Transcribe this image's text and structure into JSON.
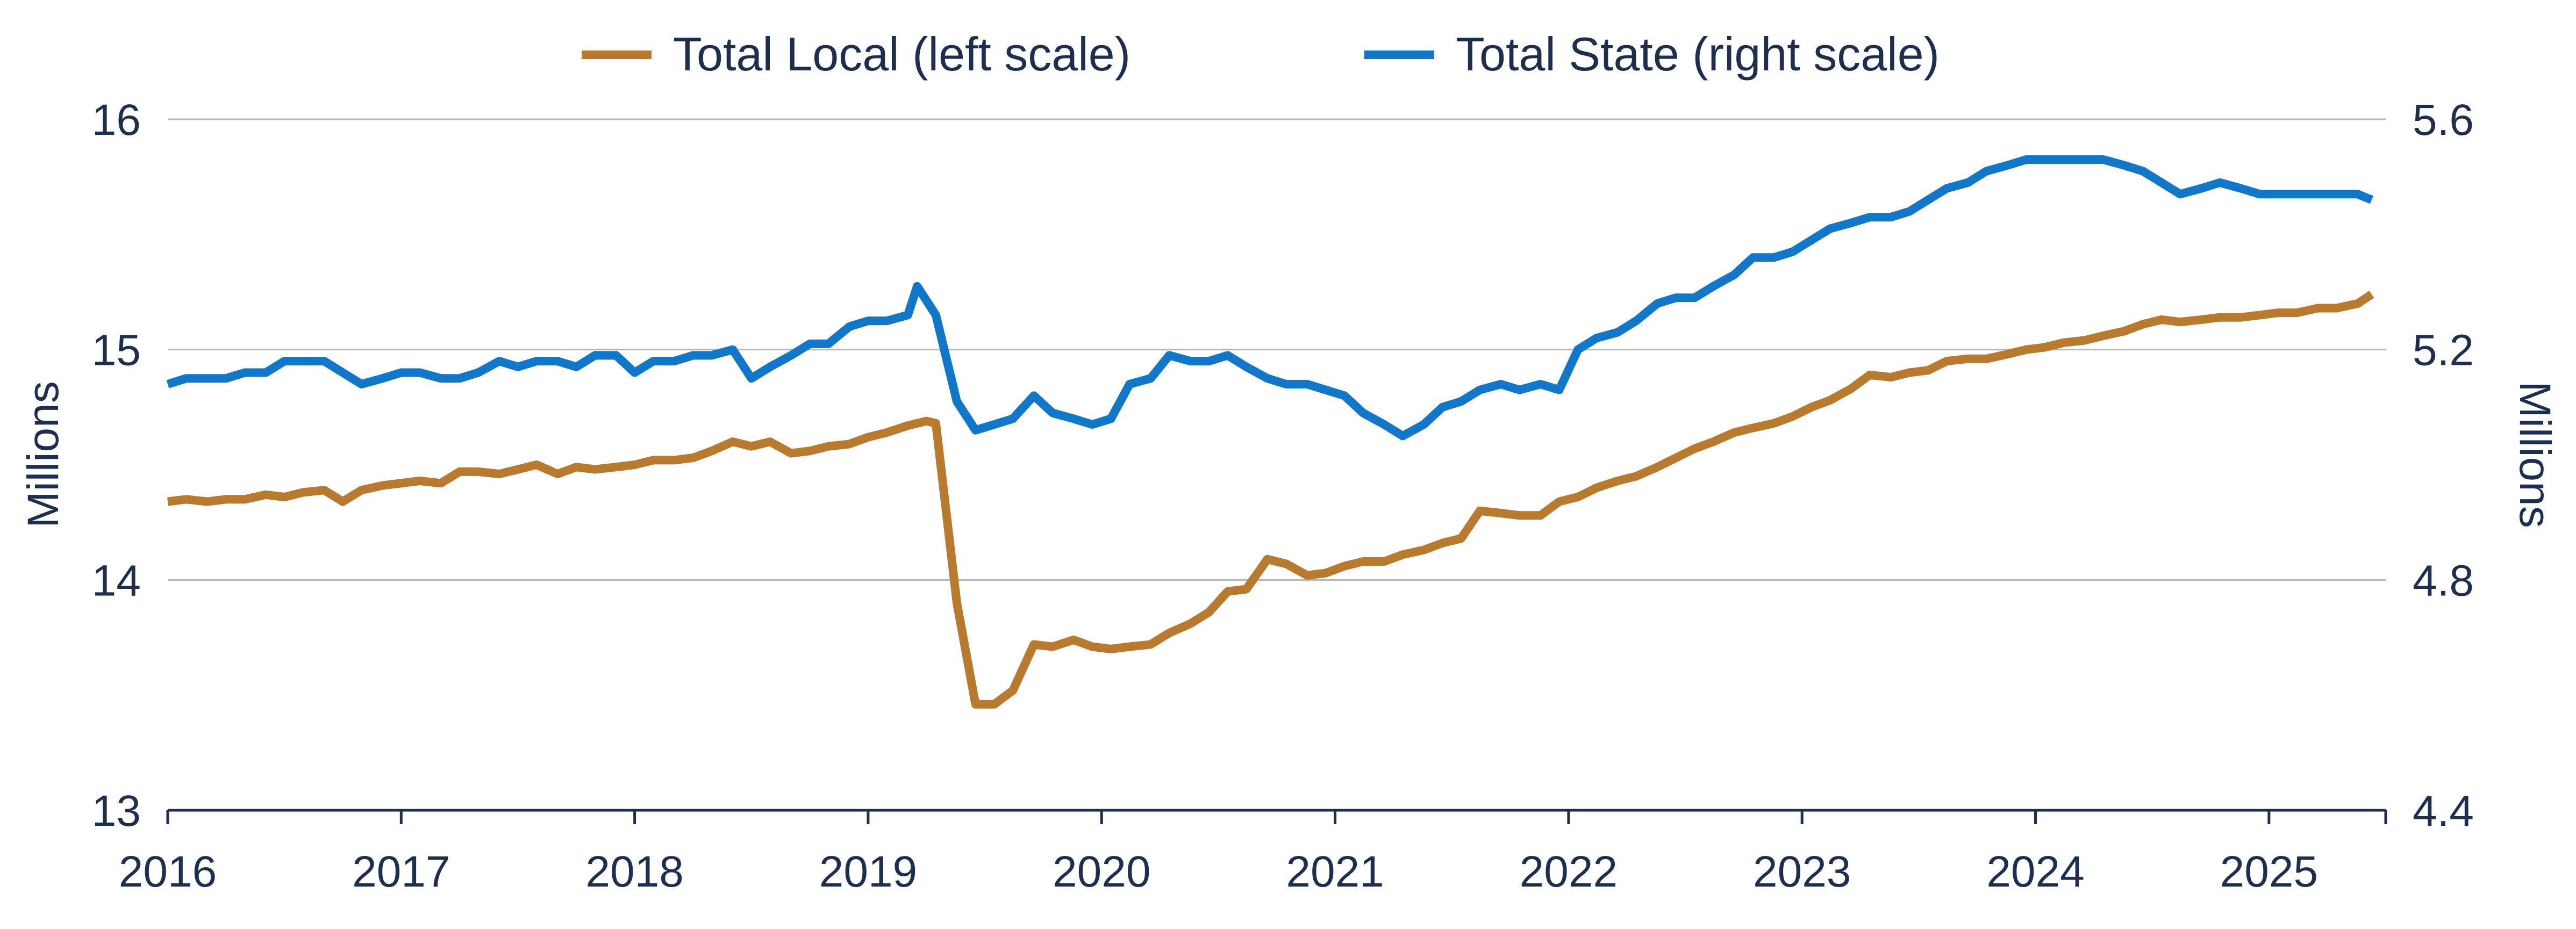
{
  "chart_data": {
    "type": "line",
    "title": "",
    "xlabel": "",
    "x_ticks": [
      "2016",
      "2017",
      "2018",
      "2019",
      "2020",
      "2021",
      "2022",
      "2023",
      "2024",
      "2025"
    ],
    "xlim": [
      2016,
      2025.5
    ],
    "y_left": {
      "label": "Millions",
      "lim": [
        13,
        16
      ],
      "ticks": [
        "13",
        "14",
        "15",
        "16"
      ]
    },
    "y_right": {
      "label": "Millions",
      "lim": [
        4.4,
        5.6
      ],
      "ticks": [
        "4.4",
        "4.8",
        "5.2",
        "5.6"
      ]
    },
    "grid": "horizontal",
    "legend_position": "top-center",
    "series": [
      {
        "name": "Total Local (left scale)",
        "axis": "left",
        "color": "#b87a2e",
        "points": [
          [
            2016.0,
            14.34
          ],
          [
            2016.08,
            14.35
          ],
          [
            2016.17,
            14.34
          ],
          [
            2016.25,
            14.35
          ],
          [
            2016.33,
            14.35
          ],
          [
            2016.42,
            14.37
          ],
          [
            2016.5,
            14.36
          ],
          [
            2016.58,
            14.38
          ],
          [
            2016.67,
            14.39
          ],
          [
            2016.75,
            14.34
          ],
          [
            2016.83,
            14.39
          ],
          [
            2016.92,
            14.41
          ],
          [
            2017.0,
            14.42
          ],
          [
            2017.08,
            14.43
          ],
          [
            2017.17,
            14.42
          ],
          [
            2017.25,
            14.47
          ],
          [
            2017.33,
            14.47
          ],
          [
            2017.42,
            14.46
          ],
          [
            2017.5,
            14.48
          ],
          [
            2017.58,
            14.5
          ],
          [
            2017.67,
            14.46
          ],
          [
            2017.75,
            14.49
          ],
          [
            2017.83,
            14.48
          ],
          [
            2017.92,
            14.49
          ],
          [
            2018.0,
            14.5
          ],
          [
            2018.08,
            14.52
          ],
          [
            2018.17,
            14.52
          ],
          [
            2018.25,
            14.53
          ],
          [
            2018.33,
            14.56
          ],
          [
            2018.42,
            14.6
          ],
          [
            2018.5,
            14.58
          ],
          [
            2018.58,
            14.6
          ],
          [
            2018.67,
            14.55
          ],
          [
            2018.75,
            14.56
          ],
          [
            2018.83,
            14.58
          ],
          [
            2018.92,
            14.59
          ],
          [
            2019.0,
            14.62
          ],
          [
            2019.08,
            14.64
          ],
          [
            2019.17,
            14.67
          ],
          [
            2019.25,
            14.69
          ],
          [
            2019.29,
            14.68
          ],
          [
            2019.38,
            13.9
          ],
          [
            2019.46,
            13.46
          ],
          [
            2019.54,
            13.46
          ],
          [
            2019.62,
            13.52
          ],
          [
            2019.71,
            13.72
          ],
          [
            2019.79,
            13.71
          ],
          [
            2019.88,
            13.74
          ],
          [
            2019.96,
            13.71
          ],
          [
            2020.04,
            13.7
          ],
          [
            2020.12,
            13.71
          ],
          [
            2020.21,
            13.72
          ],
          [
            2020.29,
            13.77
          ],
          [
            2020.38,
            13.81
          ],
          [
            2020.46,
            13.86
          ],
          [
            2020.54,
            13.95
          ],
          [
            2020.62,
            13.96
          ],
          [
            2020.71,
            14.09
          ],
          [
            2020.79,
            14.07
          ],
          [
            2020.88,
            14.02
          ],
          [
            2020.96,
            14.03
          ],
          [
            2021.04,
            14.06
          ],
          [
            2021.12,
            14.08
          ],
          [
            2021.21,
            14.08
          ],
          [
            2021.29,
            14.11
          ],
          [
            2021.38,
            14.13
          ],
          [
            2021.46,
            14.16
          ],
          [
            2021.54,
            14.18
          ],
          [
            2021.62,
            14.3
          ],
          [
            2021.71,
            14.29
          ],
          [
            2021.79,
            14.28
          ],
          [
            2021.88,
            14.28
          ],
          [
            2021.96,
            14.34
          ],
          [
            2022.04,
            14.36
          ],
          [
            2022.12,
            14.4
          ],
          [
            2022.21,
            14.43
          ],
          [
            2022.29,
            14.45
          ],
          [
            2022.38,
            14.49
          ],
          [
            2022.46,
            14.53
          ],
          [
            2022.54,
            14.57
          ],
          [
            2022.62,
            14.6
          ],
          [
            2022.71,
            14.64
          ],
          [
            2022.79,
            14.66
          ],
          [
            2022.88,
            14.68
          ],
          [
            2022.96,
            14.71
          ],
          [
            2023.04,
            14.75
          ],
          [
            2023.12,
            14.78
          ],
          [
            2023.21,
            14.83
          ],
          [
            2023.29,
            14.89
          ],
          [
            2023.38,
            14.88
          ],
          [
            2023.46,
            14.9
          ],
          [
            2023.54,
            14.91
          ],
          [
            2023.62,
            14.95
          ],
          [
            2023.71,
            14.96
          ],
          [
            2023.79,
            14.96
          ],
          [
            2023.88,
            14.98
          ],
          [
            2023.96,
            15.0
          ],
          [
            2024.04,
            15.01
          ],
          [
            2024.12,
            15.03
          ],
          [
            2024.21,
            15.04
          ],
          [
            2024.29,
            15.06
          ],
          [
            2024.38,
            15.08
          ],
          [
            2024.46,
            15.11
          ],
          [
            2024.54,
            15.13
          ],
          [
            2024.62,
            15.12
          ],
          [
            2024.71,
            15.13
          ],
          [
            2024.79,
            15.14
          ],
          [
            2024.88,
            15.14
          ],
          [
            2024.96,
            15.15
          ],
          [
            2025.04,
            15.16
          ],
          [
            2025.12,
            15.16
          ],
          [
            2025.21,
            15.18
          ],
          [
            2025.29,
            15.18
          ],
          [
            2025.38,
            15.2
          ],
          [
            2025.44,
            15.24
          ]
        ]
      },
      {
        "name": "Total State (right scale)",
        "axis": "right",
        "color": "#1377c9",
        "points": [
          [
            2016.0,
            5.14
          ],
          [
            2016.08,
            5.15
          ],
          [
            2016.17,
            5.15
          ],
          [
            2016.25,
            5.15
          ],
          [
            2016.33,
            5.16
          ],
          [
            2016.42,
            5.16
          ],
          [
            2016.5,
            5.18
          ],
          [
            2016.58,
            5.18
          ],
          [
            2016.67,
            5.18
          ],
          [
            2016.75,
            5.16
          ],
          [
            2016.83,
            5.14
          ],
          [
            2016.92,
            5.15
          ],
          [
            2017.0,
            5.16
          ],
          [
            2017.08,
            5.16
          ],
          [
            2017.17,
            5.15
          ],
          [
            2017.25,
            5.15
          ],
          [
            2017.33,
            5.16
          ],
          [
            2017.42,
            5.18
          ],
          [
            2017.5,
            5.17
          ],
          [
            2017.58,
            5.18
          ],
          [
            2017.67,
            5.18
          ],
          [
            2017.75,
            5.17
          ],
          [
            2017.83,
            5.19
          ],
          [
            2017.92,
            5.19
          ],
          [
            2018.0,
            5.16
          ],
          [
            2018.08,
            5.18
          ],
          [
            2018.17,
            5.18
          ],
          [
            2018.25,
            5.19
          ],
          [
            2018.33,
            5.19
          ],
          [
            2018.42,
            5.2
          ],
          [
            2018.5,
            5.15
          ],
          [
            2018.58,
            5.17
          ],
          [
            2018.67,
            5.19
          ],
          [
            2018.75,
            5.21
          ],
          [
            2018.83,
            5.21
          ],
          [
            2018.92,
            5.24
          ],
          [
            2019.0,
            5.25
          ],
          [
            2019.08,
            5.25
          ],
          [
            2019.17,
            5.26
          ],
          [
            2019.21,
            5.31
          ],
          [
            2019.29,
            5.26
          ],
          [
            2019.38,
            5.11
          ],
          [
            2019.46,
            5.06
          ],
          [
            2019.54,
            5.07
          ],
          [
            2019.62,
            5.08
          ],
          [
            2019.71,
            5.12
          ],
          [
            2019.79,
            5.09
          ],
          [
            2019.88,
            5.08
          ],
          [
            2019.96,
            5.07
          ],
          [
            2020.04,
            5.08
          ],
          [
            2020.12,
            5.14
          ],
          [
            2020.21,
            5.15
          ],
          [
            2020.29,
            5.19
          ],
          [
            2020.38,
            5.18
          ],
          [
            2020.46,
            5.18
          ],
          [
            2020.54,
            5.19
          ],
          [
            2020.62,
            5.17
          ],
          [
            2020.71,
            5.15
          ],
          [
            2020.79,
            5.14
          ],
          [
            2020.88,
            5.14
          ],
          [
            2020.96,
            5.13
          ],
          [
            2021.04,
            5.12
          ],
          [
            2021.12,
            5.09
          ],
          [
            2021.21,
            5.07
          ],
          [
            2021.29,
            5.05
          ],
          [
            2021.38,
            5.07
          ],
          [
            2021.46,
            5.1
          ],
          [
            2021.54,
            5.11
          ],
          [
            2021.62,
            5.13
          ],
          [
            2021.71,
            5.14
          ],
          [
            2021.79,
            5.13
          ],
          [
            2021.88,
            5.14
          ],
          [
            2021.96,
            5.13
          ],
          [
            2022.04,
            5.2
          ],
          [
            2022.12,
            5.22
          ],
          [
            2022.21,
            5.23
          ],
          [
            2022.29,
            5.25
          ],
          [
            2022.38,
            5.28
          ],
          [
            2022.46,
            5.29
          ],
          [
            2022.54,
            5.29
          ],
          [
            2022.62,
            5.31
          ],
          [
            2022.71,
            5.33
          ],
          [
            2022.79,
            5.36
          ],
          [
            2022.88,
            5.36
          ],
          [
            2022.96,
            5.37
          ],
          [
            2023.04,
            5.39
          ],
          [
            2023.12,
            5.41
          ],
          [
            2023.21,
            5.42
          ],
          [
            2023.29,
            5.43
          ],
          [
            2023.38,
            5.43
          ],
          [
            2023.46,
            5.44
          ],
          [
            2023.54,
            5.46
          ],
          [
            2023.62,
            5.48
          ],
          [
            2023.71,
            5.49
          ],
          [
            2023.79,
            5.51
          ],
          [
            2023.88,
            5.52
          ],
          [
            2023.96,
            5.53
          ],
          [
            2024.04,
            5.53
          ],
          [
            2024.12,
            5.53
          ],
          [
            2024.21,
            5.53
          ],
          [
            2024.29,
            5.53
          ],
          [
            2024.38,
            5.52
          ],
          [
            2024.46,
            5.51
          ],
          [
            2024.54,
            5.49
          ],
          [
            2024.62,
            5.47
          ],
          [
            2024.71,
            5.48
          ],
          [
            2024.79,
            5.49
          ],
          [
            2024.88,
            5.48
          ],
          [
            2024.96,
            5.47
          ],
          [
            2025.04,
            5.47
          ],
          [
            2025.12,
            5.47
          ],
          [
            2025.21,
            5.47
          ],
          [
            2025.29,
            5.47
          ],
          [
            2025.38,
            5.47
          ],
          [
            2025.44,
            5.46
          ]
        ]
      }
    ]
  }
}
